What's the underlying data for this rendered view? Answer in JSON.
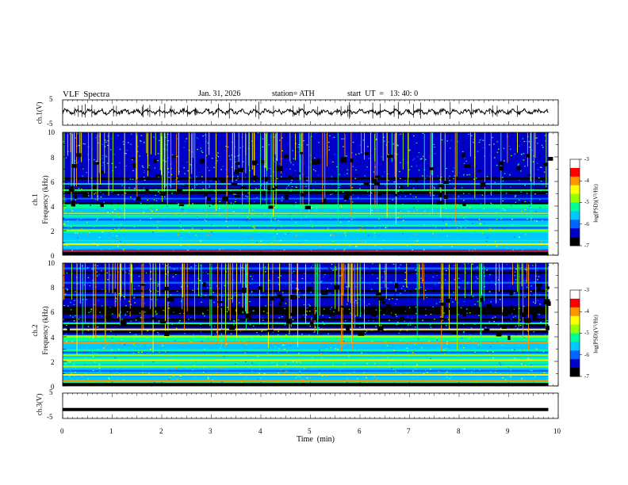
{
  "header": {
    "title": "VLF  Spectra",
    "date": "Jan. 31, 2026",
    "station": "station= ATH",
    "start_ut": "start  UT  =   13: 40: 0"
  },
  "chart_data": [
    {
      "type": "line",
      "panel": "ch1-waveform",
      "ylabel": "ch.1(V)",
      "yticks": [
        "5",
        "-5"
      ],
      "ylim": [
        -5,
        5
      ],
      "xlim": [
        0,
        10
      ],
      "line_color": "#000000"
    },
    {
      "type": "heatmap",
      "panel": "ch1-spectrogram",
      "ylabel": "ch.1\nFrequency (kHz)",
      "yticks": [
        "10",
        "8",
        "6",
        "4",
        "2",
        "0"
      ],
      "ylim": [
        0,
        10
      ],
      "xlim": [
        0,
        9.8
      ],
      "colorbar": {
        "label": "log(PSD)(V²/Hz)",
        "ticks": [
          "-3",
          "-4",
          "-5",
          "-6",
          "-7"
        ],
        "range": [
          -7,
          -3
        ],
        "colors": [
          "#000000",
          "#0000c8",
          "#0064ff",
          "#00c8ff",
          "#00ff96",
          "#96ff00",
          "#ffff00",
          "#ff9600",
          "#ff0000",
          "#ffffff"
        ]
      },
      "bands_khz": [
        {
          "f": 0.3,
          "level": -3.5
        },
        {
          "f": 0.6,
          "level": -5.5
        },
        {
          "f": 0.9,
          "level": -4.6
        },
        {
          "f": 1.3,
          "level": -5.4
        },
        {
          "f": 2.0,
          "level": -4.8
        },
        {
          "f": 2.4,
          "level": -5.2
        },
        {
          "f": 3.2,
          "level": -5.3
        },
        {
          "f": 3.4,
          "level": -5.0
        },
        {
          "f": 4.6,
          "level": -6.0
        },
        {
          "f": 5.3,
          "level": -5.3
        },
        {
          "f": 5.8,
          "level": -5.6
        }
      ]
    },
    {
      "type": "heatmap",
      "panel": "ch2-spectrogram",
      "ylabel": "ch.2\nFrequency (kHz)",
      "yticks": [
        "10",
        "8",
        "6",
        "4",
        "2",
        "0"
      ],
      "ylim": [
        0,
        10
      ],
      "xlim": [
        0,
        9.8
      ],
      "colorbar": {
        "label": "log(PSD)(V²/Hz)",
        "ticks": [
          "-3",
          "-4",
          "-5",
          "-6",
          "-7"
        ],
        "range": [
          -7,
          -3
        ],
        "colors": [
          "#000000",
          "#0000c8",
          "#0064ff",
          "#00c8ff",
          "#00ff96",
          "#96ff00",
          "#ffff00",
          "#ff9600",
          "#ff0000",
          "#ffffff"
        ]
      },
      "bands_khz": [
        {
          "f": 0.4,
          "level": -4.0
        },
        {
          "f": 0.9,
          "level": -4.3
        },
        {
          "f": 1.6,
          "level": -4.9
        },
        {
          "f": 2.1,
          "level": -4.4
        },
        {
          "f": 2.5,
          "level": -4.7
        },
        {
          "f": 3.5,
          "level": -3.9
        },
        {
          "f": 4.0,
          "level": -4.8
        },
        {
          "f": 4.6,
          "level": -4.4
        },
        {
          "f": 5.1,
          "level": -5.3
        }
      ]
    },
    {
      "type": "line",
      "panel": "ch3-waveform",
      "ylabel": "ch.3(V)",
      "yticks": [
        "5",
        "-5"
      ],
      "ylim": [
        -5,
        5
      ],
      "xlim": [
        0,
        10
      ],
      "xlabel": "Time  (min)",
      "xticks": [
        "0",
        "1",
        "2",
        "3",
        "4",
        "5",
        "6",
        "7",
        "8",
        "9",
        "10"
      ],
      "constant_level": -1.5,
      "line_color": "#000000"
    }
  ]
}
